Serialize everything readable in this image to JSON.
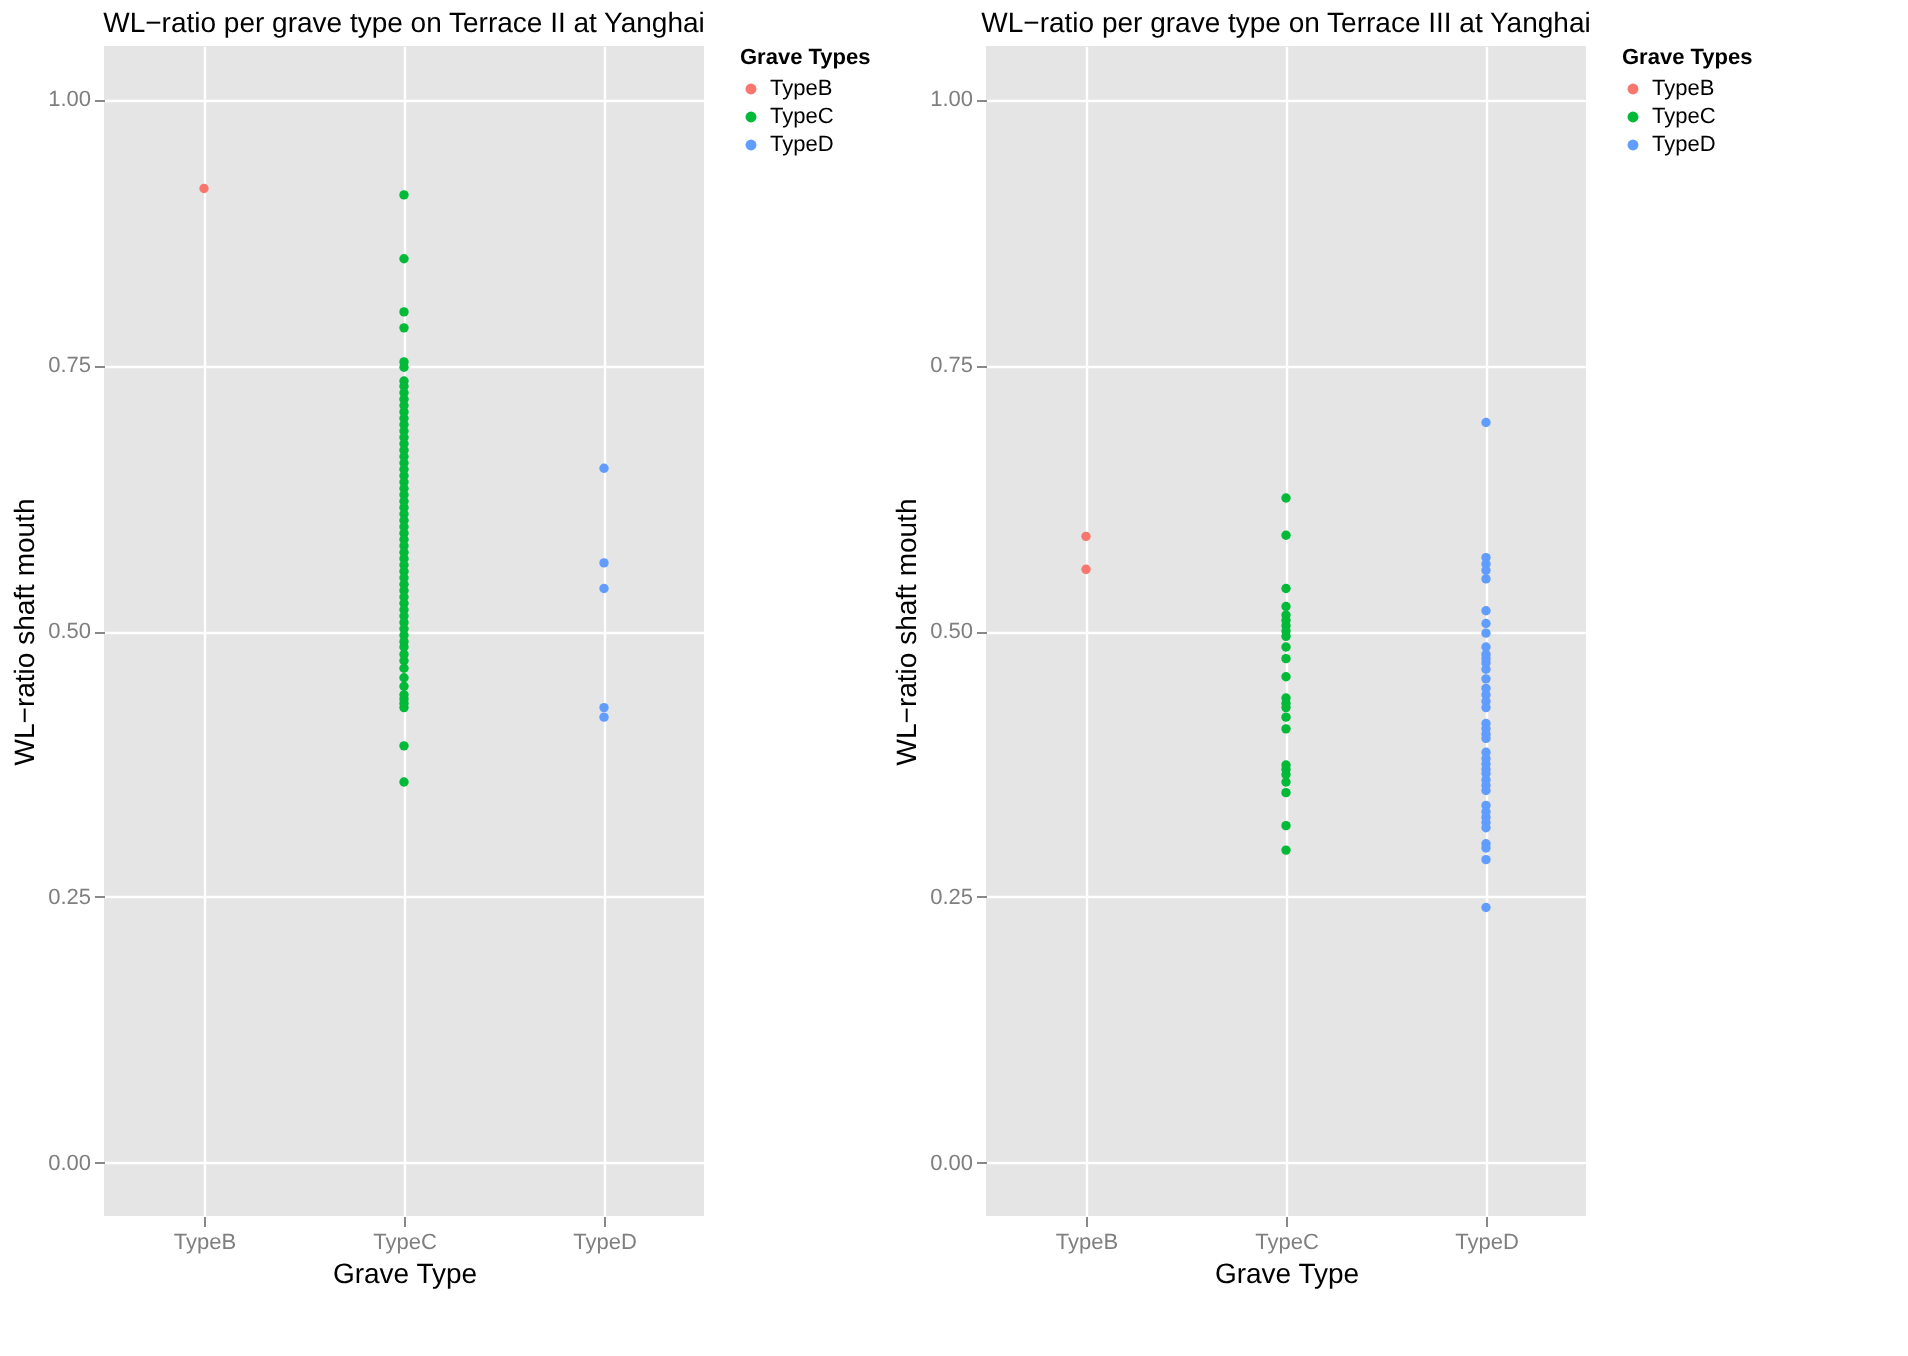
{
  "chart_data": [
    {
      "type": "scatter",
      "title": "WL−ratio per grave type on Terrace II at Yanghai",
      "xlabel": "Grave Type",
      "ylabel": "WL−ratio shaft mouth",
      "legend_title": "Grave Types",
      "legend": "right",
      "grid": true,
      "marker": "circle",
      "categories": [
        "TypeB",
        "TypeC",
        "TypeD"
      ],
      "ylim": [
        -0.05,
        1.05
      ],
      "yticks": [
        {
          "value": 0,
          "label": "0.00"
        },
        {
          "value": 0.25,
          "label": "0.25"
        },
        {
          "value": 0.5,
          "label": "0.50"
        },
        {
          "value": 0.75,
          "label": "0.75"
        },
        {
          "value": 1,
          "label": "1.00"
        }
      ],
      "series": [
        {
          "name": "TypeB",
          "color": "#f8766d",
          "x": [
            "TypeB"
          ],
          "values": [
            0.916
          ]
        },
        {
          "name": "TypeC",
          "color": "#00ba38",
          "x": [
            "TypeC",
            "TypeC",
            "TypeC",
            "TypeC",
            "TypeC",
            "TypeC",
            "TypeC",
            "TypeC",
            "TypeC",
            "TypeC",
            "TypeC",
            "TypeC",
            "TypeC",
            "TypeC",
            "TypeC",
            "TypeC",
            "TypeC",
            "TypeC",
            "TypeC",
            "TypeC",
            "TypeC",
            "TypeC",
            "TypeC",
            "TypeC",
            "TypeC",
            "TypeC",
            "TypeC",
            "TypeC",
            "TypeC",
            "TypeC",
            "TypeC",
            "TypeC",
            "TypeC",
            "TypeC",
            "TypeC",
            "TypeC",
            "TypeC",
            "TypeC",
            "TypeC",
            "TypeC",
            "TypeC",
            "TypeC",
            "TypeC",
            "TypeC",
            "TypeC",
            "TypeC",
            "TypeC",
            "TypeC",
            "TypeC",
            "TypeC",
            "TypeC",
            "TypeC",
            "TypeC",
            "TypeC",
            "TypeC",
            "TypeC",
            "TypeC",
            "TypeC",
            "TypeC",
            "TypeC"
          ],
          "values": [
            0.91,
            0.85,
            0.8,
            0.785,
            0.753,
            0.748,
            0.735,
            0.73,
            0.724,
            0.718,
            0.712,
            0.706,
            0.7,
            0.694,
            0.688,
            0.682,
            0.676,
            0.67,
            0.664,
            0.658,
            0.652,
            0.646,
            0.64,
            0.634,
            0.628,
            0.622,
            0.616,
            0.61,
            0.604,
            0.598,
            0.592,
            0.586,
            0.58,
            0.574,
            0.568,
            0.562,
            0.556,
            0.55,
            0.544,
            0.538,
            0.532,
            0.526,
            0.52,
            0.514,
            0.508,
            0.502,
            0.496,
            0.485,
            0.478,
            0.472,
            0.465,
            0.456,
            0.448,
            0.44,
            0.436,
            0.432,
            0.428,
            0.392,
            0.358,
            0.49
          ]
        },
        {
          "name": "TypeD",
          "color": "#619cff",
          "x": [
            "TypeD",
            "TypeD",
            "TypeD",
            "TypeD",
            "TypeD"
          ],
          "values": [
            0.653,
            0.564,
            0.54,
            0.428,
            0.419
          ]
        }
      ]
    },
    {
      "type": "scatter",
      "title": "WL−ratio per grave type on Terrace III at Yanghai",
      "xlabel": "Grave Type",
      "ylabel": "WL−ratio shaft mouth",
      "legend_title": "Grave Types",
      "legend": "right",
      "grid": true,
      "marker": "circle",
      "categories": [
        "TypeB",
        "TypeC",
        "TypeD"
      ],
      "ylim": [
        -0.05,
        1.05
      ],
      "yticks": [
        {
          "value": 0,
          "label": "0.00"
        },
        {
          "value": 0.25,
          "label": "0.25"
        },
        {
          "value": 0.5,
          "label": "0.50"
        },
        {
          "value": 0.75,
          "label": "0.75"
        },
        {
          "value": 1,
          "label": "1.00"
        }
      ],
      "series": [
        {
          "name": "TypeB",
          "color": "#f8766d",
          "x": [
            "TypeB",
            "TypeB"
          ],
          "values": [
            0.589,
            0.558
          ]
        },
        {
          "name": "TypeC",
          "color": "#00ba38",
          "x": [
            "TypeC",
            "TypeC",
            "TypeC",
            "TypeC",
            "TypeC",
            "TypeC",
            "TypeC",
            "TypeC",
            "TypeC",
            "TypeC",
            "TypeC",
            "TypeC",
            "TypeC",
            "TypeC",
            "TypeC",
            "TypeC",
            "TypeC",
            "TypeC",
            "TypeC",
            "TypeC",
            "TypeC",
            "TypeC",
            "TypeC",
            "TypeC"
          ],
          "values": [
            0.625,
            0.59,
            0.54,
            0.523,
            0.515,
            0.51,
            0.505,
            0.5,
            0.495,
            0.485,
            0.474,
            0.457,
            0.437,
            0.432,
            0.428,
            0.419,
            0.408,
            0.374,
            0.37,
            0.365,
            0.358,
            0.348,
            0.317,
            0.294
          ]
        },
        {
          "name": "TypeD",
          "color": "#619cff",
          "x": [
            "TypeD",
            "TypeD",
            "TypeD",
            "TypeD",
            "TypeD",
            "TypeD",
            "TypeD",
            "TypeD",
            "TypeD",
            "TypeD",
            "TypeD",
            "TypeD",
            "TypeD",
            "TypeD",
            "TypeD",
            "TypeD",
            "TypeD",
            "TypeD",
            "TypeD",
            "TypeD",
            "TypeD",
            "TypeD",
            "TypeD",
            "TypeD",
            "TypeD",
            "TypeD",
            "TypeD",
            "TypeD",
            "TypeD",
            "TypeD",
            "TypeD",
            "TypeD",
            "TypeD",
            "TypeD",
            "TypeD",
            "TypeD",
            "TypeD",
            "TypeD",
            "TypeD"
          ],
          "values": [
            0.696,
            0.569,
            0.563,
            0.557,
            0.549,
            0.519,
            0.507,
            0.498,
            0.485,
            0.478,
            0.474,
            0.47,
            0.464,
            0.455,
            0.446,
            0.44,
            0.434,
            0.428,
            0.413,
            0.408,
            0.403,
            0.399,
            0.386,
            0.38,
            0.375,
            0.37,
            0.366,
            0.36,
            0.355,
            0.35,
            0.336,
            0.33,
            0.325,
            0.32,
            0.315,
            0.3,
            0.296,
            0.285,
            0.24
          ]
        }
      ]
    }
  ]
}
